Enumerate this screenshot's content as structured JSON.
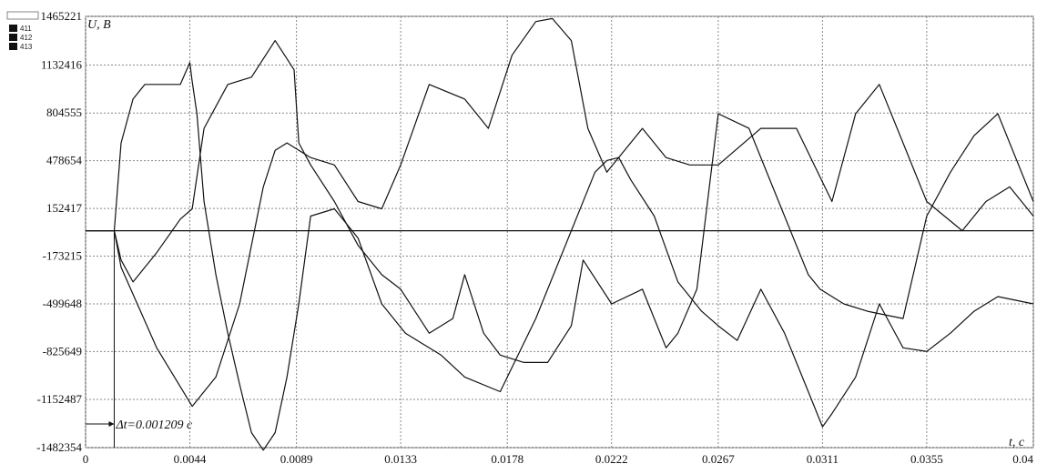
{
  "chart_data": {
    "type": "line",
    "xlabel": "t, c",
    "ylabel": "U, B",
    "xlim": [
      0,
      0.04
    ],
    "ylim": [
      -1482354,
      1465221
    ],
    "x_ticks": [
      "0",
      "0.0044",
      "0.0089",
      "0.0133",
      "0.0178",
      "0.0222",
      "0.0267",
      "0.0311",
      "0.0355",
      "0.04"
    ],
    "y_ticks": [
      "1465221",
      "1132416",
      "804555",
      "478654",
      "152417",
      "-173215",
      "-499648",
      "-825649",
      "-1152487",
      "-1482354"
    ],
    "grid": true,
    "legend": {
      "position": "top-left",
      "entries": [
        "411",
        "412",
        "413"
      ]
    },
    "annotation": {
      "text": "Δt=0.001209 c",
      "dt": 0.001209
    },
    "series": [
      {
        "x": [
          0,
          0.001209,
          0.0015,
          0.002,
          0.0025,
          0.003,
          0.0035,
          0.004,
          0.0044,
          0.0045,
          0.0047,
          0.005,
          0.0055,
          0.006,
          0.0065,
          0.007,
          0.0075,
          0.008,
          0.0085,
          0.009,
          0.0095,
          0.0105,
          0.0115,
          0.0125,
          0.0135,
          0.015,
          0.016,
          0.0175,
          0.019,
          0.0205,
          0.0215,
          0.022,
          0.0225,
          0.023,
          0.024,
          0.025,
          0.026,
          0.0267,
          0.0275,
          0.0285,
          0.0295,
          0.0305,
          0.0311,
          0.0315,
          0.0325,
          0.0335,
          0.0345,
          0.0355,
          0.0365,
          0.0375,
          0.0385,
          0.04
        ],
        "values": [
          0,
          0,
          600000,
          900000,
          1000000,
          1000000,
          1000000,
          1000000,
          1150000,
          1020000,
          800000,
          200000,
          -300000,
          -700000,
          -1050000,
          -1380000,
          -1500000,
          -1380000,
          -1000000,
          -500000,
          100000,
          150000,
          -50000,
          -500000,
          -700000,
          -850000,
          -1000000,
          -1100000,
          -600000,
          0,
          400000,
          480000,
          500000,
          350000,
          100000,
          -350000,
          -550000,
          -650000,
          -750000,
          -400000,
          -700000,
          -1100000,
          -1340000,
          -1250000,
          -1000000,
          -500000,
          -800000,
          -825000,
          -700000,
          -550000,
          -450000,
          -500000
        ]
      },
      {
        "x": [
          0,
          0.001209,
          0.0015,
          0.002,
          0.003,
          0.004,
          0.0045,
          0.005,
          0.006,
          0.007,
          0.008,
          0.0088,
          0.009,
          0.0095,
          0.0105,
          0.0115,
          0.0125,
          0.0133,
          0.0145,
          0.0155,
          0.016,
          0.0168,
          0.0175,
          0.0185,
          0.0195,
          0.0205,
          0.021,
          0.0222,
          0.0235,
          0.0245,
          0.025,
          0.0258,
          0.0267,
          0.028,
          0.0295,
          0.0305,
          0.031,
          0.032,
          0.033,
          0.0345,
          0.0355,
          0.0365,
          0.0375,
          0.0385,
          0.04
        ],
        "values": [
          0,
          0,
          -200000,
          -350000,
          -150000,
          80000,
          150000,
          700000,
          1000000,
          1050000,
          1300000,
          1100000,
          600000,
          450000,
          200000,
          -100000,
          -300000,
          -400000,
          -700000,
          -600000,
          -300000,
          -700000,
          -850000,
          -900000,
          -900000,
          -650000,
          -200000,
          -500000,
          -400000,
          -800000,
          -700000,
          -400000,
          800000,
          700000,
          100000,
          -300000,
          -400000,
          -500000,
          -550000,
          -600000,
          100000,
          400000,
          650000,
          800000,
          200000
        ]
      },
      {
        "x": [
          0,
          0.001209,
          0.0015,
          0.003,
          0.0045,
          0.0055,
          0.0065,
          0.0075,
          0.008,
          0.0085,
          0.0095,
          0.0105,
          0.0115,
          0.0125,
          0.0133,
          0.0145,
          0.016,
          0.017,
          0.018,
          0.019,
          0.0197,
          0.0205,
          0.0212,
          0.022,
          0.0235,
          0.0245,
          0.0255,
          0.0267,
          0.0285,
          0.03,
          0.0315,
          0.0325,
          0.0335,
          0.0345,
          0.0355,
          0.037,
          0.038,
          0.039,
          0.04
        ],
        "values": [
          0,
          0,
          -250000,
          -800000,
          -1200000,
          -1000000,
          -500000,
          300000,
          550000,
          600000,
          500000,
          450000,
          200000,
          150000,
          450000,
          1000000,
          900000,
          700000,
          1200000,
          1430000,
          1450000,
          1300000,
          700000,
          400000,
          700000,
          500000,
          450000,
          450000,
          700000,
          700000,
          200000,
          800000,
          1000000,
          600000,
          200000,
          0,
          200000,
          300000,
          100000
        ]
      }
    ]
  }
}
